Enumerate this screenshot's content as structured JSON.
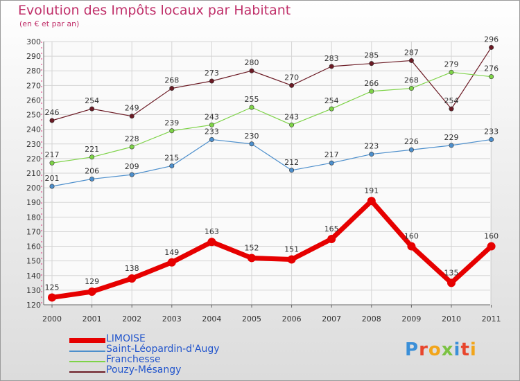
{
  "chart_data": {
    "type": "line",
    "title": "Evolution des Impôts locaux par Habitant",
    "subtitle": "(en € et par an)",
    "categories": [
      "2000",
      "2001",
      "2002",
      "2003",
      "2004",
      "2005",
      "2006",
      "2007",
      "2008",
      "2009",
      "2010",
      "2011"
    ],
    "ylim": [
      120,
      300
    ],
    "yticks": [
      120,
      130,
      140,
      150,
      160,
      170,
      180,
      190,
      200,
      210,
      220,
      230,
      240,
      250,
      260,
      270,
      280,
      290,
      300
    ],
    "series": [
      {
        "name": "Pouzy-Mésangy",
        "color": "#6b1a24",
        "values": [
          246,
          254,
          249,
          268,
          273,
          280,
          270,
          283,
          285,
          287,
          254,
          296
        ]
      },
      {
        "name": "Franchesse",
        "color": "#7ed348",
        "values": [
          217,
          221,
          228,
          239,
          243,
          255,
          243,
          254,
          266,
          268,
          279,
          276
        ]
      },
      {
        "name": "Saint-Léopardin-d'Augy",
        "color": "#4d8fcc",
        "values": [
          201,
          206,
          209,
          215,
          233,
          230,
          212,
          217,
          223,
          226,
          229,
          233
        ]
      },
      {
        "name": "LIMOISE",
        "color": "#e60000",
        "values": [
          125,
          129,
          138,
          149,
          163,
          152,
          151,
          165,
          191,
          160,
          135,
          160
        ]
      }
    ],
    "legend": [
      "LIMOISE",
      "Saint-Léopardin-d'Augy",
      "Franchesse",
      "Pouzy-Mésangy"
    ]
  },
  "logo": {
    "text": "Proxiti"
  },
  "colors": {
    "title": "#c0306a",
    "legend_text": "#2255cc"
  }
}
